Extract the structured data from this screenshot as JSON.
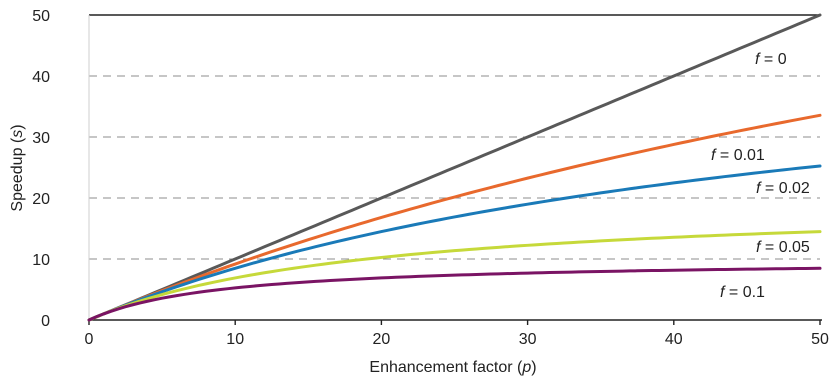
{
  "chart_data": {
    "type": "line",
    "xlabel": {
      "text": "Enhancement factor (",
      "var": "p",
      "close": ")"
    },
    "ylabel": {
      "text": "Speedup (",
      "var": "s",
      "close": ")"
    },
    "xlim": [
      0,
      50
    ],
    "ylim": [
      0,
      50
    ],
    "x_ticks": [
      0,
      10,
      20,
      30,
      40,
      50
    ],
    "y_ticks": [
      0,
      10,
      20,
      30,
      40,
      50
    ],
    "x_tick_labels": [
      "0",
      "10",
      "20",
      "30",
      "40",
      "50"
    ],
    "y_tick_labels": [
      "0",
      "10",
      "20",
      "30",
      "40",
      "50"
    ],
    "grid": "horizontal-dashed",
    "series": [
      {
        "name": "f = 0",
        "var": "f",
        "eq": " = ",
        "value_label": "0",
        "f": 0,
        "color": "#595959"
      },
      {
        "name": "f = 0.01",
        "var": "f",
        "eq": " = ",
        "value_label": "0.01",
        "f": 0.01,
        "color": "#e8692d"
      },
      {
        "name": "f = 0.02",
        "var": "f",
        "eq": " = ",
        "value_label": "0.02",
        "f": 0.02,
        "color": "#1a7ab8"
      },
      {
        "name": "f = 0.05",
        "var": "f",
        "eq": " = ",
        "value_label": "0.05",
        "f": 0.05,
        "color": "#c6d93a"
      },
      {
        "name": "f = 0.1",
        "var": "f",
        "eq": " = ",
        "value_label": "0.1",
        "f": 0.1,
        "color": "#7a1464"
      }
    ],
    "x_values": [
      0,
      1,
      2,
      3,
      4,
      5,
      7.5,
      10,
      12.5,
      15,
      17.5,
      20,
      22.5,
      25,
      27.5,
      30,
      32.5,
      35,
      37.5,
      40,
      42.5,
      45,
      47.5,
      50
    ],
    "note": "speedup s = p / (1 + f*(p-1)), sampled at x_values for each series"
  }
}
